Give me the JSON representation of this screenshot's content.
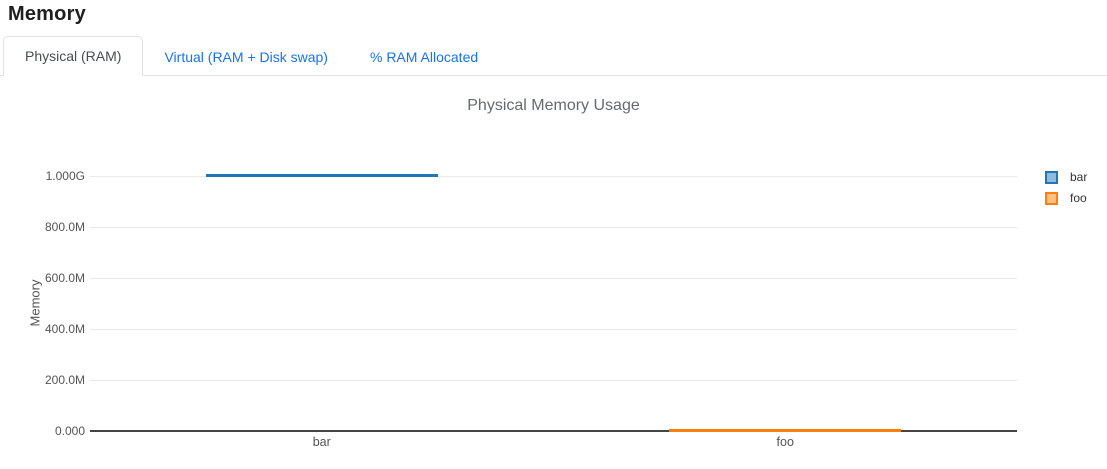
{
  "page": {
    "title": "Memory"
  },
  "tabs": [
    {
      "label": "Physical (RAM)",
      "active": true
    },
    {
      "label": "Virtual (RAM + Disk swap)",
      "active": false
    },
    {
      "label": "% RAM Allocated",
      "active": false
    }
  ],
  "chart_data": {
    "type": "line",
    "title": "Physical Memory Usage",
    "xlabel": "",
    "ylabel": "Memory",
    "categories": [
      "bar",
      "foo"
    ],
    "series": [
      {
        "name": "bar",
        "color": "#1f77b4",
        "fill": "#92badb",
        "values": [
          1000000000,
          null
        ]
      },
      {
        "name": "foo",
        "color": "#ff7f0e",
        "fill": "#ffc083",
        "values": [
          null,
          0
        ]
      }
    ],
    "ylim": [
      0,
      1000000000
    ],
    "yticks": [
      {
        "value": 0,
        "label": "0.000"
      },
      {
        "value": 200000000,
        "label": "200.0M"
      },
      {
        "value": 400000000,
        "label": "400.0M"
      },
      {
        "value": 600000000,
        "label": "600.0M"
      },
      {
        "value": 800000000,
        "label": "800.0M"
      },
      {
        "value": 1000000000,
        "label": "1.000G"
      }
    ],
    "grid": true,
    "legend_position": "right"
  }
}
